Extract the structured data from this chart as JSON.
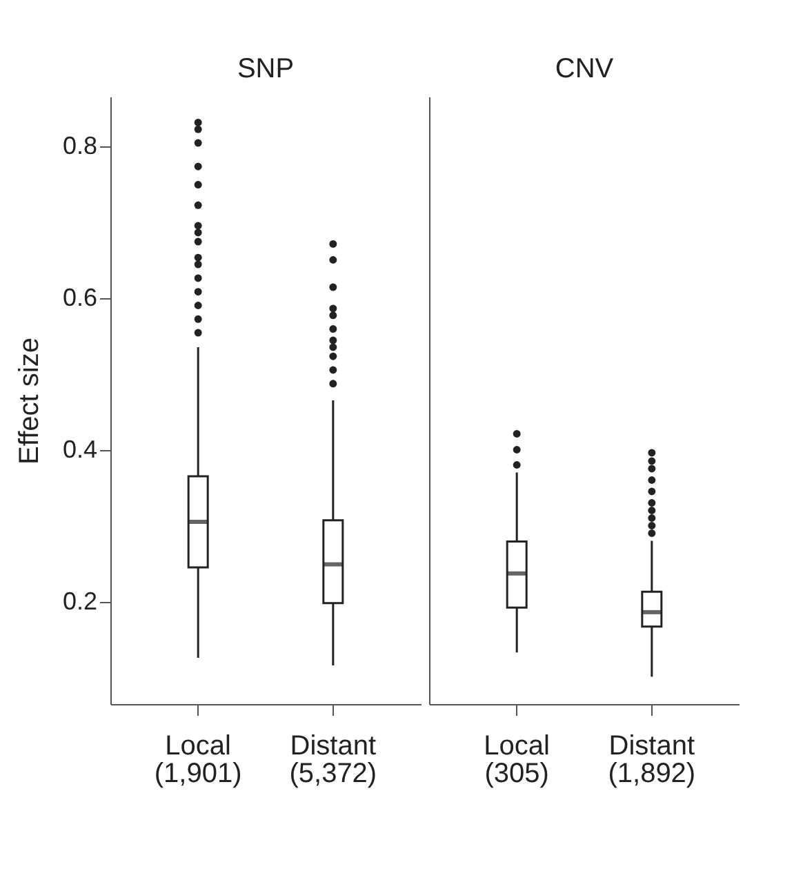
{
  "chart_data": [
    {
      "type": "box",
      "title": "SNP",
      "ylabel": "Effect size",
      "categories": [
        "Local\n(1,901)",
        "Distant\n(5,372)"
      ],
      "ylim": [
        0.065,
        0.865
      ],
      "yticks": [
        0.2,
        0.4,
        0.6,
        0.8
      ],
      "grid": false,
      "series": [
        {
          "color": "#222222",
          "boxes": [
            {
              "low": 0.126,
              "q1": 0.245,
              "median": 0.305,
              "q3": 0.365,
              "high": 0.535,
              "outliers": [
                0.554,
                0.572,
                0.59,
                0.608,
                0.626,
                0.644,
                0.653,
                0.674,
                0.686,
                0.695,
                0.722,
                0.749,
                0.773,
                0.804,
                0.822,
                0.831
              ]
            },
            {
              "low": 0.116,
              "q1": 0.198,
              "median": 0.249,
              "q3": 0.307,
              "high": 0.465,
              "outliers": [
                0.487,
                0.505,
                0.523,
                0.535,
                0.544,
                0.559,
                0.577,
                0.586,
                0.614,
                0.65,
                0.671
              ]
            }
          ]
        }
      ]
    },
    {
      "type": "box",
      "title": "CNV",
      "categories": [
        "Local\n(305)",
        "Distant\n(1,892)"
      ],
      "ylim": [
        0.065,
        0.865
      ],
      "yticks": [
        0.2,
        0.4,
        0.6,
        0.8
      ],
      "grid": false,
      "tick_labels": "x",
      "series": [
        {
          "color": "#222222",
          "boxes": [
            {
              "low": 0.133,
              "q1": 0.192,
              "median": 0.237,
              "q3": 0.279,
              "high": 0.37,
              "outliers": [
                0.38,
                0.4,
                0.421
              ]
            },
            {
              "low": 0.101,
              "q1": 0.167,
              "median": 0.186,
              "q3": 0.213,
              "high": 0.28,
              "outliers": [
                0.29,
                0.3,
                0.31,
                0.32,
                0.33,
                0.345,
                0.36,
                0.375,
                0.385,
                0.396
              ]
            }
          ]
        }
      ]
    }
  ]
}
